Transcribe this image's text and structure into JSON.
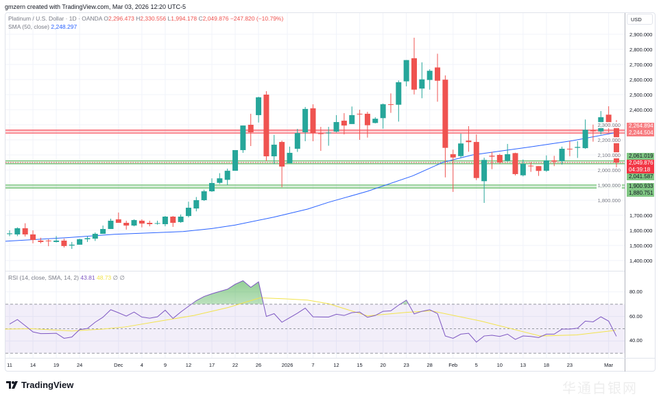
{
  "credit": "gmzern created with TradingView.com, Mar 03, 2026 12:20 UTC-5",
  "legend": {
    "symbol": "Platinum / U.S. Dollar · 1D · OANDA",
    "o_label": "O",
    "o": "2,296.473",
    "h_label": "H",
    "h": "2,330.556",
    "l_label": "L",
    "l": "1,994.178",
    "c_label": "C",
    "c": "2,049.876",
    "change": "−247.820 (−10.79%)",
    "sma_label": "SMA (50, close)",
    "sma_value": "2,248.297",
    "rsi_label": "RSI (14, close, SMA, 14, 2)",
    "rsi_value": "43.81",
    "rsi_sma_value": "48.73",
    "rsi_extra": "∅ ∅"
  },
  "axis": {
    "currency": "USD",
    "price_levels": [
      2900,
      2800,
      2700,
      2600,
      2500,
      2400,
      2300,
      2200,
      2100,
      2000,
      1900,
      1800,
      1700,
      1600,
      1500,
      1400
    ],
    "price_labels": [
      "2,900.000",
      "2,800.000",
      "2,700.000",
      "2,600.000",
      "2,500.000",
      "2,400.000",
      "2,300.000",
      "2,200.000",
      "2,100.000",
      "2,000.000",
      "1,900.000",
      "1,800.000",
      "1,700.000",
      "1,600.000",
      "1,500.000",
      "1,400.000"
    ],
    "rsi_labels": [
      "80.00",
      "60.00",
      "40.00"
    ],
    "tags": {
      "r1": "2,264.894",
      "r2": "2,244.504",
      "g1": "2,061.019",
      "price": "2,049.876",
      "countdown": "04:39:18",
      "g2": "2,041.587",
      "g3": "1,900.933",
      "g4": "1,880.751"
    }
  },
  "levels": {
    "resistance": [
      2264.894,
      2244.504
    ],
    "support_mid": [
      2061.019,
      2041.587
    ],
    "support_low": [
      1900.933,
      1880.751
    ],
    "last": 2049.876
  },
  "time_labels": [
    {
      "t": "11",
      "i": 0
    },
    {
      "t": "14",
      "i": 3
    },
    {
      "t": "19",
      "i": 6
    },
    {
      "t": "24",
      "i": 9
    },
    {
      "t": "Dec",
      "i": 14
    },
    {
      "t": "4",
      "i": 17
    },
    {
      "t": "9",
      "i": 20
    },
    {
      "t": "12",
      "i": 23
    },
    {
      "t": "17",
      "i": 26
    },
    {
      "t": "22",
      "i": 29
    },
    {
      "t": "26",
      "i": 32
    },
    {
      "t": "2026",
      "i": 35.7
    },
    {
      "t": "7",
      "i": 39
    },
    {
      "t": "12",
      "i": 42
    },
    {
      "t": "15",
      "i": 45
    },
    {
      "t": "20",
      "i": 48
    },
    {
      "t": "23",
      "i": 51
    },
    {
      "t": "28",
      "i": 54
    },
    {
      "t": "Feb",
      "i": 57
    },
    {
      "t": "5",
      "i": 60
    },
    {
      "t": "10",
      "i": 63
    },
    {
      "t": "13",
      "i": 66
    },
    {
      "t": "18",
      "i": 69
    },
    {
      "t": "23",
      "i": 72
    },
    {
      "t": "Mar",
      "i": 77
    }
  ],
  "colors": {
    "up": "#26a69a",
    "down": "#ef5350",
    "sma": "#2962ff",
    "rsi": "#7e57c2",
    "rsi_sma": "#f2e34b"
  },
  "candles_ohlc": [
    [
      1575,
      1600,
      1562,
      1580
    ],
    [
      1573,
      1620,
      1562,
      1614
    ],
    [
      1614,
      1647,
      1559,
      1573
    ],
    [
      1573,
      1600,
      1514,
      1536
    ],
    [
      1532,
      1551,
      1514,
      1523
    ],
    [
      1532,
      1541,
      1495,
      1530
    ],
    [
      1523,
      1562,
      1520,
      1532
    ],
    [
      1532,
      1545,
      1486,
      1496
    ],
    [
      1499,
      1523,
      1477,
      1505
    ],
    [
      1505,
      1545,
      1505,
      1541
    ],
    [
      1541,
      1560,
      1523,
      1548
    ],
    [
      1545,
      1586,
      1530,
      1577
    ],
    [
      1577,
      1632,
      1577,
      1609
    ],
    [
      1609,
      1677,
      1609,
      1664
    ],
    [
      1673,
      1718,
      1650,
      1650
    ],
    [
      1650,
      1664,
      1605,
      1632
    ],
    [
      1632,
      1673,
      1627,
      1668
    ],
    [
      1664,
      1673,
      1620,
      1645
    ],
    [
      1650,
      1664,
      1627,
      1641
    ],
    [
      1645,
      1664,
      1638,
      1648
    ],
    [
      1641,
      1695,
      1627,
      1691
    ],
    [
      1691,
      1695,
      1623,
      1650
    ],
    [
      1655,
      1705,
      1650,
      1691
    ],
    [
      1695,
      1790,
      1686,
      1750
    ],
    [
      1745,
      1821,
      1726,
      1800
    ],
    [
      1800,
      1870,
      1795,
      1859
    ],
    [
      1859,
      1945,
      1855,
      1914
    ],
    [
      1915,
      1979,
      1907,
      1945
    ],
    [
      1935,
      2009,
      1900,
      1995
    ],
    [
      1995,
      2132,
      1995,
      2132
    ],
    [
      2132,
      2295,
      2114,
      2295
    ],
    [
      2300,
      2373,
      2159,
      2250
    ],
    [
      2364,
      2486,
      2315,
      2482
    ],
    [
      2500,
      2523,
      2059,
      2091
    ],
    [
      2091,
      2233,
      2039,
      2168
    ],
    [
      2186,
      2195,
      1886,
      2023
    ],
    [
      2045,
      2155,
      2045,
      2114
    ],
    [
      2141,
      2273,
      2120,
      2245
    ],
    [
      2250,
      2418,
      2191,
      2405
    ],
    [
      2409,
      2436,
      2191,
      2245
    ],
    [
      2243,
      2286,
      2127,
      2240
    ],
    [
      2245,
      2286,
      2161,
      2248
    ],
    [
      2255,
      2364,
      2249,
      2318
    ],
    [
      2327,
      2377,
      2236,
      2295
    ],
    [
      2305,
      2421,
      2305,
      2364
    ],
    [
      2373,
      2400,
      2200,
      2371
    ],
    [
      2373,
      2386,
      2215,
      2297
    ],
    [
      2312,
      2350,
      2309,
      2340
    ],
    [
      2344,
      2441,
      2274,
      2436
    ],
    [
      2436,
      2508,
      2379,
      2434
    ],
    [
      2433,
      2594,
      2321,
      2582
    ],
    [
      2588,
      2729,
      2555,
      2729
    ],
    [
      2741,
      2877,
      2501,
      2533
    ],
    [
      2540,
      2714,
      2476,
      2601
    ],
    [
      2597,
      2668,
      2533,
      2658
    ],
    [
      2680,
      2771,
      2453,
      2592
    ],
    [
      2599,
      2627,
      1951,
      2147
    ],
    [
      2105,
      2135,
      1855,
      2083
    ],
    [
      2092,
      2241,
      2080,
      2176
    ],
    [
      2195,
      2291,
      2121,
      2185
    ],
    [
      2186,
      2236,
      1933,
      1947
    ],
    [
      1926,
      2082,
      1782,
      2067
    ],
    [
      2095,
      2120,
      2006,
      2089
    ],
    [
      2100,
      2107,
      2039,
      2051
    ],
    [
      2061,
      2173,
      2055,
      2105
    ],
    [
      2112,
      2115,
      1964,
      1973
    ],
    [
      1965,
      2070,
      1958,
      2041
    ],
    [
      2029,
      2051,
      1988,
      2026
    ],
    [
      2026,
      2026,
      1961,
      1994
    ],
    [
      1995,
      2097,
      1988,
      2064
    ],
    [
      2064,
      2094,
      2026,
      2056
    ],
    [
      2059,
      2155,
      2036,
      2141
    ],
    [
      2141,
      2191,
      2092,
      2139
    ],
    [
      2147,
      2191,
      2080,
      2153
    ],
    [
      2145,
      2335,
      2140,
      2267
    ],
    [
      2262,
      2301,
      2188,
      2260
    ],
    [
      2256,
      2391,
      2236,
      2350
    ],
    [
      2367,
      2423,
      2249,
      2292
    ],
    [
      2296.473,
      2330.556,
      1994.178,
      2049.876
    ]
  ],
  "sma_points": [
    [
      -1.2,
      1526
    ],
    [
      7.6,
      1552
    ],
    [
      13.5,
      1574
    ],
    [
      22.3,
      1592
    ],
    [
      26,
      1612
    ],
    [
      29,
      1635
    ],
    [
      34,
      1688
    ],
    [
      38.3,
      1741
    ],
    [
      41,
      1786
    ],
    [
      46,
      1859
    ],
    [
      51.8,
      1961
    ],
    [
      55.7,
      2051
    ],
    [
      59.5,
      2100
    ],
    [
      66.5,
      2150
    ],
    [
      72.4,
      2195
    ],
    [
      77.9,
      2248.297
    ]
  ],
  "rsi_values": [
    53.8,
    57.5,
    52.5,
    47.4,
    46,
    46.1,
    46.3,
    42.2,
    43.2,
    49.3,
    50.2,
    55.3,
    59.4,
    65.5,
    63,
    60.3,
    63.6,
    59.5,
    58.6,
    59.7,
    65.1,
    58.4,
    63.6,
    68.3,
    72.9,
    76.3,
    78.5,
    80.4,
    82.2,
    86.3,
    89.1,
    83.7,
    88.2,
    60,
    62.3,
    55.3,
    59,
    62.7,
    66.8,
    59.7,
    59.6,
    59.5,
    61.8,
    60.8,
    63.1,
    63.6,
    59.3,
    60.8,
    64.2,
    64.6,
    69.2,
    73.3,
    62.1,
    64.2,
    65.5,
    62.3,
    44.1,
    42.2,
    45.6,
    46.3,
    39.1,
    44.1,
    44.7,
    43.7,
    45.6,
    41.3,
    44.1,
    43.7,
    42.8,
    45.6,
    45.6,
    49.7,
    49.7,
    50.4,
    56.2,
    55.6,
    59.7,
    56.2,
    43.81
  ],
  "rsi_sma_points": [
    [
      -0.6,
      49.7
    ],
    [
      2.9,
      50
    ],
    [
      8,
      48.2
    ],
    [
      12,
      49.7
    ],
    [
      14.9,
      51.5
    ],
    [
      19.3,
      56.2
    ],
    [
      23.7,
      60.8
    ],
    [
      28.1,
      67.3
    ],
    [
      32.2,
      75.2
    ],
    [
      35.4,
      74.4
    ],
    [
      38.3,
      73.3
    ],
    [
      41,
      70.4
    ],
    [
      46,
      60.5
    ],
    [
      50.9,
      63.3
    ],
    [
      54.2,
      64.6
    ],
    [
      60.6,
      56.2
    ],
    [
      68.2,
      44.1
    ],
    [
      72.9,
      45
    ],
    [
      77.9,
      48.73
    ]
  ],
  "rsi_levels": [
    70,
    50,
    30
  ],
  "branding": "TradingView",
  "watermark": "华通白银网"
}
